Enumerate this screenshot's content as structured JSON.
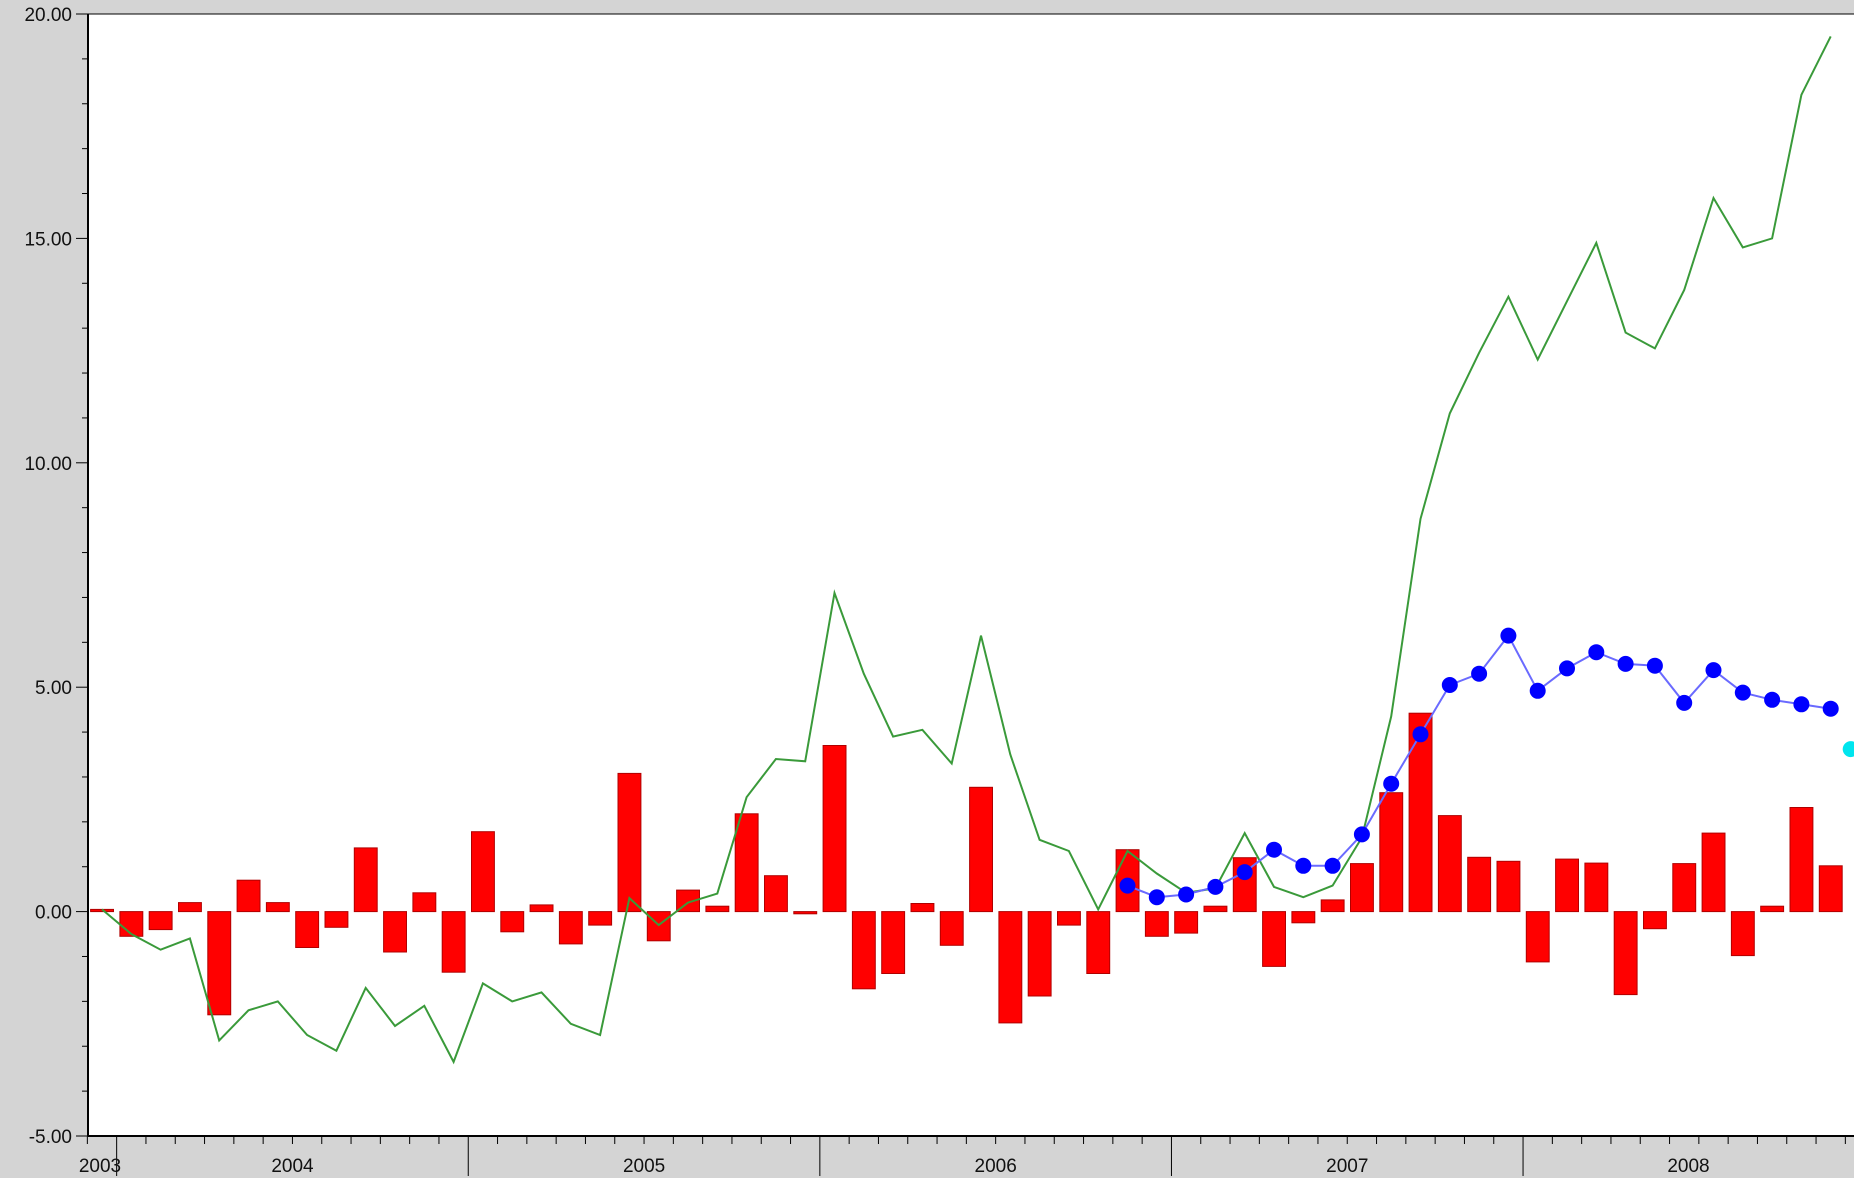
{
  "chart_data": {
    "type": "bar",
    "title": "",
    "xlabel": "",
    "ylabel": "",
    "ylim": [
      -5,
      20
    ],
    "yticks": [
      "-5.00",
      "0.00",
      "5.00",
      "10.00",
      "15.00",
      "20.00"
    ],
    "year_labels": [
      "2003",
      "2004",
      "2005",
      "2006",
      "2007",
      "2008"
    ],
    "grid": false,
    "legend": "none",
    "colors": {
      "bars": "#ff0000",
      "bar_edge": "#b00000",
      "cumulative_line": "#3a9a3a",
      "moving_line": "#6a6aff",
      "moving_marker": "#0000ff",
      "last_point": "#00e5ee",
      "plot_bg": "#ffffff",
      "frame_bg": "#d4d4d4"
    },
    "x_start": "2003-12",
    "bars": [
      0.05,
      -0.55,
      -0.4,
      0.2,
      -2.3,
      0.7,
      0.2,
      -0.8,
      -0.35,
      1.42,
      -0.9,
      0.42,
      -1.35,
      1.78,
      -0.45,
      0.15,
      -0.72,
      -0.3,
      3.08,
      -0.65,
      0.48,
      0.12,
      2.18,
      0.8,
      -0.05,
      3.7,
      -1.72,
      -1.38,
      0.18,
      -0.75,
      2.77,
      -2.48,
      -1.88,
      -0.3,
      -1.38,
      1.38,
      -0.55,
      -0.48,
      0.12,
      1.2,
      -1.22,
      -0.25,
      0.26,
      1.07,
      2.65,
      4.42,
      2.14,
      1.21,
      1.12,
      -1.12,
      1.17,
      1.08,
      -1.85,
      -0.38,
      1.07,
      1.75,
      -0.98,
      0.12,
      2.32,
      1.02
    ],
    "cumulative": [
      0.05,
      -0.5,
      -0.85,
      -0.6,
      -2.87,
      -2.2,
      -2.0,
      -2.75,
      -3.1,
      -1.7,
      -2.55,
      -2.1,
      -3.35,
      -1.6,
      -2.0,
      -1.8,
      -2.5,
      -2.75,
      0.3,
      -0.3,
      0.2,
      0.4,
      2.55,
      3.4,
      3.35,
      7.1,
      5.3,
      3.9,
      4.05,
      3.3,
      6.15,
      3.5,
      1.6,
      1.35,
      0.05,
      1.35,
      0.85,
      0.42,
      0.52,
      1.75,
      0.55,
      0.32,
      0.58,
      1.65,
      4.35,
      8.75,
      11.1,
      12.45,
      13.7,
      12.3,
      13.6,
      14.9,
      12.9,
      12.55,
      13.85,
      15.9,
      14.8,
      15.0,
      18.2,
      19.5
    ],
    "moving_start_index": 35,
    "moving": [
      0.58,
      0.32,
      0.38,
      0.55,
      0.88,
      1.38,
      1.02,
      1.02,
      1.72,
      2.85,
      3.95,
      5.05,
      5.3,
      6.15,
      4.92,
      5.42,
      5.78,
      5.52,
      5.48,
      4.65,
      5.38,
      4.88,
      4.72,
      4.62,
      4.52
    ],
    "last_point": 3.62
  }
}
